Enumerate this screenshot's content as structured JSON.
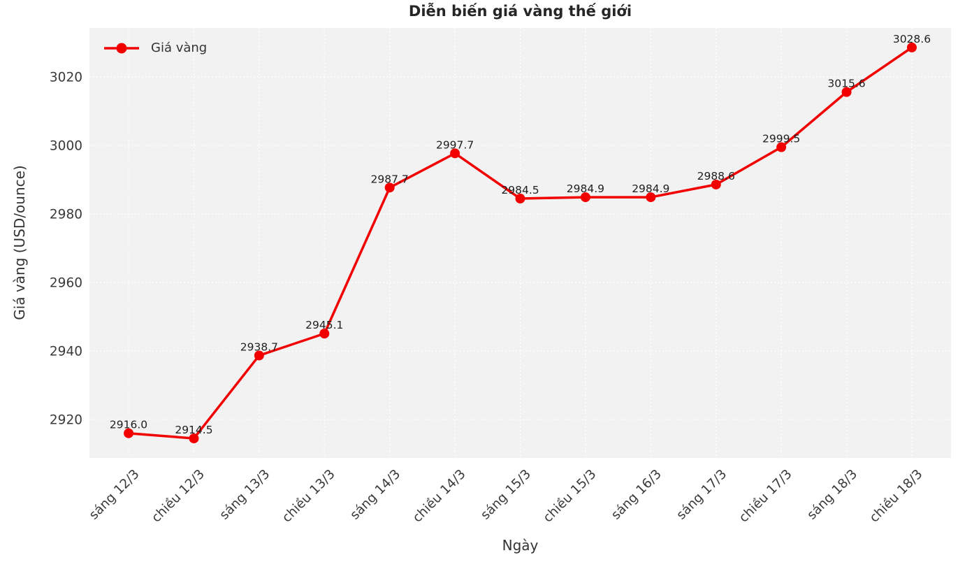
{
  "header": {
    "title": "Diễn biến giá vàng thế giới"
  },
  "legend": {
    "label": "Giá vàng"
  },
  "axes": {
    "xlabel": "Ngày",
    "ylabel": "Giá vàng (USD/ounce)"
  },
  "colors": {
    "line": "#f20000",
    "marker": "#f20000",
    "plot_bg": "#f2f2f2",
    "grid": "#ffffff",
    "tick_text": "#3a3a3a",
    "data_label_text": "#1f1f1f"
  },
  "chart_data": {
    "type": "line",
    "title": "Diễn biến giá vàng thế giới",
    "xlabel": "Ngày",
    "ylabel": "Giá vàng (USD/ounce)",
    "categories": [
      "sáng 12/3",
      "chiều 12/3",
      "sáng 13/3",
      "chiều 13/3",
      "sáng 14/3",
      "chiều 14/3",
      "sáng 15/3",
      "chiều 15/3",
      "sáng 16/3",
      "sáng 17/3",
      "chiều 17/3",
      "sáng 18/3",
      "chiều 18/3"
    ],
    "series": [
      {
        "name": "Giá vàng",
        "values": [
          2916.0,
          2914.5,
          2938.7,
          2945.1,
          2987.7,
          2997.7,
          2984.5,
          2984.9,
          2984.9,
          2988.6,
          2999.5,
          3015.6,
          3028.6
        ]
      }
    ],
    "data_labels": [
      "2916.0",
      "2914.5",
      "2938.7",
      "2945.1",
      "2987.7",
      "2997.7",
      "2984.5",
      "2984.9",
      "2984.9",
      "2988.6",
      "2999.5",
      "3015.6",
      "3028.6"
    ],
    "y_ticks": [
      2920,
      2940,
      2960,
      2980,
      3000,
      3020
    ],
    "ylim": [
      2908.8,
      3034.3
    ],
    "grid": true,
    "grid_style": "dashed-white",
    "legend_position": "upper-left",
    "marker": "circle",
    "line_width": 3.5,
    "marker_radius": 7
  }
}
